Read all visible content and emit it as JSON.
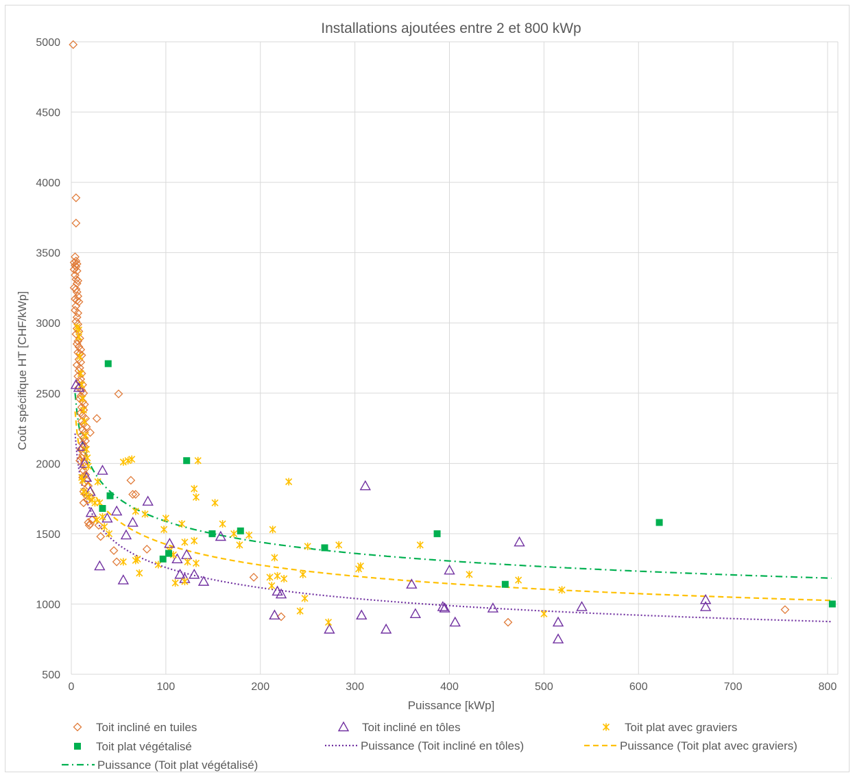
{
  "chart_data": {
    "type": "scatter",
    "title": "Installations ajoutées entre 2 et 800 kWp",
    "xlabel": "Puissance [kWp]",
    "ylabel": "Coût spécifique HT [CHF/kWp]",
    "xlim": [
      0,
      800
    ],
    "ylim": [
      500,
      5000
    ],
    "xticks": [
      0,
      100,
      200,
      300,
      400,
      500,
      600,
      700,
      800
    ],
    "yticks": [
      500,
      1000,
      1500,
      2000,
      2500,
      3000,
      3500,
      4000,
      4500,
      5000
    ],
    "grid": true,
    "legend_position": "bottom",
    "colors": {
      "tuiles": "#E07B39",
      "toles": "#7030A0",
      "graviers": "#FFC000",
      "vegetalise": "#00B050",
      "grid": "#d9d9d9",
      "text": "#595959"
    },
    "series": [
      {
        "name": "Toit incliné en tuiles",
        "marker": "diamond",
        "points": [
          [
            2,
            4980
          ],
          [
            5,
            3890
          ],
          [
            5,
            3710
          ],
          [
            4,
            3470
          ],
          [
            5,
            3440
          ],
          [
            3,
            3430
          ],
          [
            6,
            3420
          ],
          [
            4,
            3410
          ],
          [
            5,
            3400
          ],
          [
            3,
            3380
          ],
          [
            6,
            3370
          ],
          [
            4,
            3340
          ],
          [
            5,
            3310
          ],
          [
            7,
            3300
          ],
          [
            6,
            3280
          ],
          [
            3,
            3250
          ],
          [
            5,
            3240
          ],
          [
            6,
            3220
          ],
          [
            7,
            3190
          ],
          [
            4,
            3170
          ],
          [
            6,
            3160
          ],
          [
            8,
            3150
          ],
          [
            5,
            3120
          ],
          [
            4,
            3090
          ],
          [
            7,
            3070
          ],
          [
            6,
            3040
          ],
          [
            5,
            3010
          ],
          [
            7,
            2990
          ],
          [
            6,
            2960
          ],
          [
            8,
            2940
          ],
          [
            5,
            2920
          ],
          [
            9,
            2890
          ],
          [
            7,
            2870
          ],
          [
            6,
            2850
          ],
          [
            8,
            2830
          ],
          [
            10,
            2810
          ],
          [
            7,
            2790
          ],
          [
            9,
            2780
          ],
          [
            11,
            2770
          ],
          [
            8,
            2740
          ],
          [
            10,
            2720
          ],
          [
            6,
            2700
          ],
          [
            9,
            2680
          ],
          [
            8,
            2660
          ],
          [
            11,
            2640
          ],
          [
            7,
            2620
          ],
          [
            10,
            2600
          ],
          [
            9,
            2580
          ],
          [
            12,
            2560
          ],
          [
            8,
            2540
          ],
          [
            11,
            2520
          ],
          [
            13,
            2500
          ],
          [
            10,
            2480
          ],
          [
            9,
            2460
          ],
          [
            12,
            2440
          ],
          [
            14,
            2420
          ],
          [
            11,
            2400
          ],
          [
            13,
            2380
          ],
          [
            10,
            2360
          ],
          [
            12,
            2340
          ],
          [
            15,
            2320
          ],
          [
            11,
            2300
          ],
          [
            13,
            2280
          ],
          [
            16,
            2260
          ],
          [
            12,
            2240
          ],
          [
            14,
            2220
          ],
          [
            11,
            2200
          ],
          [
            13,
            2180
          ],
          [
            15,
            2160
          ],
          [
            12,
            2140
          ],
          [
            14,
            2120
          ],
          [
            10,
            2100
          ],
          [
            13,
            2080
          ],
          [
            12,
            2060
          ],
          [
            11,
            2040
          ],
          [
            9,
            2020
          ],
          [
            14,
            2010
          ],
          [
            20,
            2220
          ],
          [
            27,
            2320
          ],
          [
            50,
            2495
          ],
          [
            14,
            1980
          ],
          [
            13,
            1950
          ],
          [
            15,
            1920
          ],
          [
            12,
            1900
          ],
          [
            16,
            1880
          ],
          [
            14,
            1860
          ],
          [
            18,
            1840
          ],
          [
            13,
            1800
          ],
          [
            15,
            1780
          ],
          [
            20,
            1760
          ],
          [
            17,
            1740
          ],
          [
            13,
            1720
          ],
          [
            22,
            1600
          ],
          [
            18,
            1580
          ],
          [
            20,
            1570
          ],
          [
            19,
            1560
          ],
          [
            29,
            1560
          ],
          [
            31,
            1480
          ],
          [
            45,
            1380
          ],
          [
            48,
            1300
          ],
          [
            63,
            1880
          ],
          [
            65,
            1780
          ],
          [
            68,
            1780
          ],
          [
            80,
            1390
          ],
          [
            193,
            1190
          ],
          [
            222,
            910
          ],
          [
            462,
            870
          ],
          [
            755,
            960
          ]
        ]
      },
      {
        "name": "Toit incliné en tôles",
        "marker": "triangle",
        "points": [
          [
            5,
            2560
          ],
          [
            8,
            2540
          ],
          [
            12,
            2120
          ],
          [
            14,
            2000
          ],
          [
            16,
            1900
          ],
          [
            20,
            1800
          ],
          [
            21,
            1650
          ],
          [
            30,
            1270
          ],
          [
            33,
            1950
          ],
          [
            38,
            1610
          ],
          [
            48,
            1660
          ],
          [
            55,
            1170
          ],
          [
            58,
            1490
          ],
          [
            65,
            1580
          ],
          [
            81,
            1730
          ],
          [
            104,
            1430
          ],
          [
            112,
            1320
          ],
          [
            115,
            1210
          ],
          [
            120,
            1180
          ],
          [
            122,
            1350
          ],
          [
            130,
            1210
          ],
          [
            140,
            1160
          ],
          [
            158,
            1480
          ],
          [
            215,
            920
          ],
          [
            218,
            1090
          ],
          [
            222,
            1070
          ],
          [
            273,
            820
          ],
          [
            307,
            920
          ],
          [
            311,
            1840
          ],
          [
            333,
            820
          ],
          [
            360,
            1140
          ],
          [
            364,
            930
          ],
          [
            393,
            980
          ],
          [
            395,
            970
          ],
          [
            400,
            1240
          ],
          [
            406,
            870
          ],
          [
            446,
            970
          ],
          [
            474,
            1440
          ],
          [
            515,
            870
          ],
          [
            515,
            750
          ],
          [
            540,
            980
          ],
          [
            671,
            1030
          ],
          [
            671,
            980
          ]
        ]
      },
      {
        "name": "Toit plat avec graviers",
        "marker": "asterisk",
        "points": [
          [
            6,
            2970
          ],
          [
            8,
            2950
          ],
          [
            8,
            2900
          ],
          [
            9,
            2760
          ],
          [
            10,
            2640
          ],
          [
            11,
            2560
          ],
          [
            12,
            2460
          ],
          [
            13,
            2380
          ],
          [
            14,
            2300
          ],
          [
            15,
            2200
          ],
          [
            16,
            2100
          ],
          [
            17,
            2040
          ],
          [
            18,
            1980
          ],
          [
            11,
            1900
          ],
          [
            12,
            1880
          ],
          [
            13,
            1800
          ],
          [
            16,
            1780
          ],
          [
            19,
            1760
          ],
          [
            22,
            1740
          ],
          [
            25,
            1720
          ],
          [
            28,
            1870
          ],
          [
            30,
            1720
          ],
          [
            27,
            1600
          ],
          [
            33,
            1620
          ],
          [
            35,
            1550
          ],
          [
            40,
            1500
          ],
          [
            55,
            2010
          ],
          [
            60,
            2020
          ],
          [
            64,
            2030
          ],
          [
            68,
            1660
          ],
          [
            70,
            1320
          ],
          [
            72,
            1220
          ],
          [
            68,
            1310
          ],
          [
            78,
            1640
          ],
          [
            55,
            1300
          ],
          [
            92,
            1280
          ],
          [
            98,
            1530
          ],
          [
            100,
            1610
          ],
          [
            104,
            1380
          ],
          [
            108,
            1350
          ],
          [
            117,
            1570
          ],
          [
            120,
            1440
          ],
          [
            123,
            1300
          ],
          [
            130,
            1820
          ],
          [
            132,
            1760
          ],
          [
            134,
            2020
          ],
          [
            130,
            1450
          ],
          [
            132,
            1290
          ],
          [
            110,
            1150
          ],
          [
            120,
            1160
          ],
          [
            152,
            1720
          ],
          [
            160,
            1570
          ],
          [
            172,
            1500
          ],
          [
            178,
            1420
          ],
          [
            188,
            1490
          ],
          [
            210,
            1190
          ],
          [
            212,
            1130
          ],
          [
            213,
            1530
          ],
          [
            215,
            1330
          ],
          [
            218,
            1200
          ],
          [
            225,
            1180
          ],
          [
            230,
            1870
          ],
          [
            242,
            950
          ],
          [
            245,
            1210
          ],
          [
            247,
            1040
          ],
          [
            250,
            1410
          ],
          [
            272,
            870
          ],
          [
            283,
            1420
          ],
          [
            304,
            1250
          ],
          [
            306,
            1270
          ],
          [
            369,
            1420
          ],
          [
            421,
            1210
          ],
          [
            473,
            1170
          ],
          [
            500,
            930
          ],
          [
            519,
            1100
          ]
        ]
      },
      {
        "name": "Toit plat végétalisé",
        "marker": "square",
        "points": [
          [
            39,
            2710
          ],
          [
            41,
            1770
          ],
          [
            33,
            1680
          ],
          [
            97,
            1320
          ],
          [
            103,
            1360
          ],
          [
            122,
            2020
          ],
          [
            149,
            1500
          ],
          [
            179,
            1520
          ],
          [
            268,
            1400
          ],
          [
            387,
            1500
          ],
          [
            459,
            1140
          ],
          [
            622,
            1580
          ],
          [
            805,
            1000
          ]
        ]
      }
    ],
    "trendlines": [
      {
        "name": "Puissance (Toit incliné en tôles)",
        "type": "power",
        "a": 2820,
        "b": -0.175,
        "color": "#7030A0",
        "style": "dotted"
      },
      {
        "name": "Puissance (Toit plat avec graviers)",
        "type": "power",
        "a": 2950,
        "b": -0.158,
        "color": "#FFC000",
        "style": "dashed"
      },
      {
        "name": "Puissance (Toit plat végétalisé)",
        "type": "power",
        "a": 3040,
        "b": -0.141,
        "color": "#00B050",
        "style": "dashdot"
      }
    ]
  }
}
